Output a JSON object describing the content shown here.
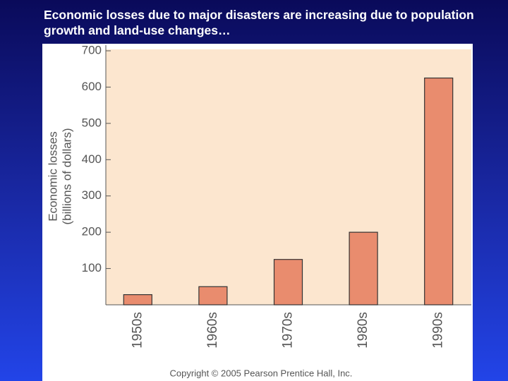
{
  "title": "Economic losses due to major disasters are increasing due to population growth and land-use changes…",
  "chart_data": {
    "type": "bar",
    "ylabel": [
      "Economic losses",
      "(billions of dollars)"
    ],
    "categories": [
      "1950s",
      "1960s",
      "1970s",
      "1980s",
      "1990s"
    ],
    "values": [
      28,
      50,
      125,
      200,
      625
    ],
    "color": "#e98c6e",
    "ylim": [
      0,
      700
    ],
    "yticks": [
      100,
      200,
      300,
      400,
      500,
      600,
      700
    ],
    "footer": "Copyright © 2005 Pearson Prentice Hall, Inc."
  }
}
